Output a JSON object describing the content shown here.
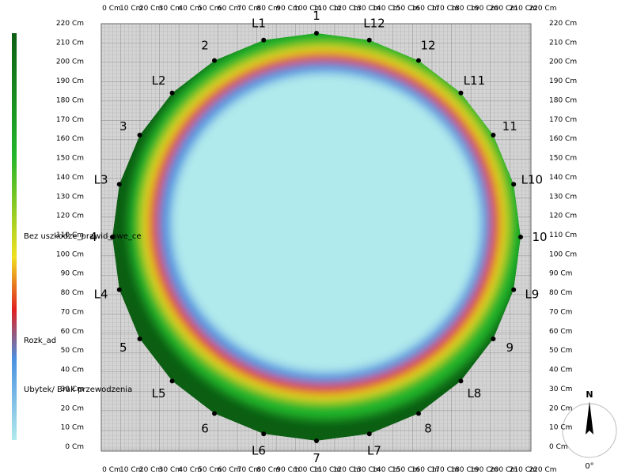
{
  "x_axis": {
    "labels": [
      "0 Cm",
      "10 Cm",
      "20 Cm",
      "30 Cm",
      "40 Cm",
      "50 Cm",
      "60 Cm",
      "70 Cm",
      "80 Cm",
      "90 Cm",
      "100 Cm",
      "110 Cm",
      "120 Cm",
      "130 Cm",
      "140 Cm",
      "150 Cm",
      "160 Cm",
      "170 Cm",
      "180 Cm",
      "190 Cm",
      "200 Cm",
      "210 Cm",
      "220 Cm"
    ]
  },
  "y_axis": {
    "labels": [
      "220 Cm",
      "210 Cm",
      "200 Cm",
      "190 Cm",
      "180 Cm",
      "170 Cm",
      "160 Cm",
      "150 Cm",
      "140 Cm",
      "130 Cm",
      "120 Cm",
      "110 Cm",
      "100 Cm",
      "90 Cm",
      "80 Cm",
      "70 Cm",
      "60 Cm",
      "50 Cm",
      "40 Cm",
      "30 Cm",
      "20 Cm",
      "10 Cm",
      "0 Cm"
    ]
  },
  "sensors": [
    "1",
    "L12",
    "12",
    "L11",
    "11",
    "L10",
    "10",
    "L9",
    "9",
    "L8",
    "8",
    "L7",
    "7",
    "L6",
    "6",
    "L5",
    "5",
    "L4",
    "4",
    "L3",
    "3",
    "L2",
    "2",
    "L1"
  ],
  "legend": {
    "labels": [
      "Bez uszkodze_prawid_owe_ce",
      "Rozk_ad",
      "Ubytek/ Brak przewodzenia"
    ]
  },
  "compass": {
    "north": "N",
    "angle": "0°"
  }
}
